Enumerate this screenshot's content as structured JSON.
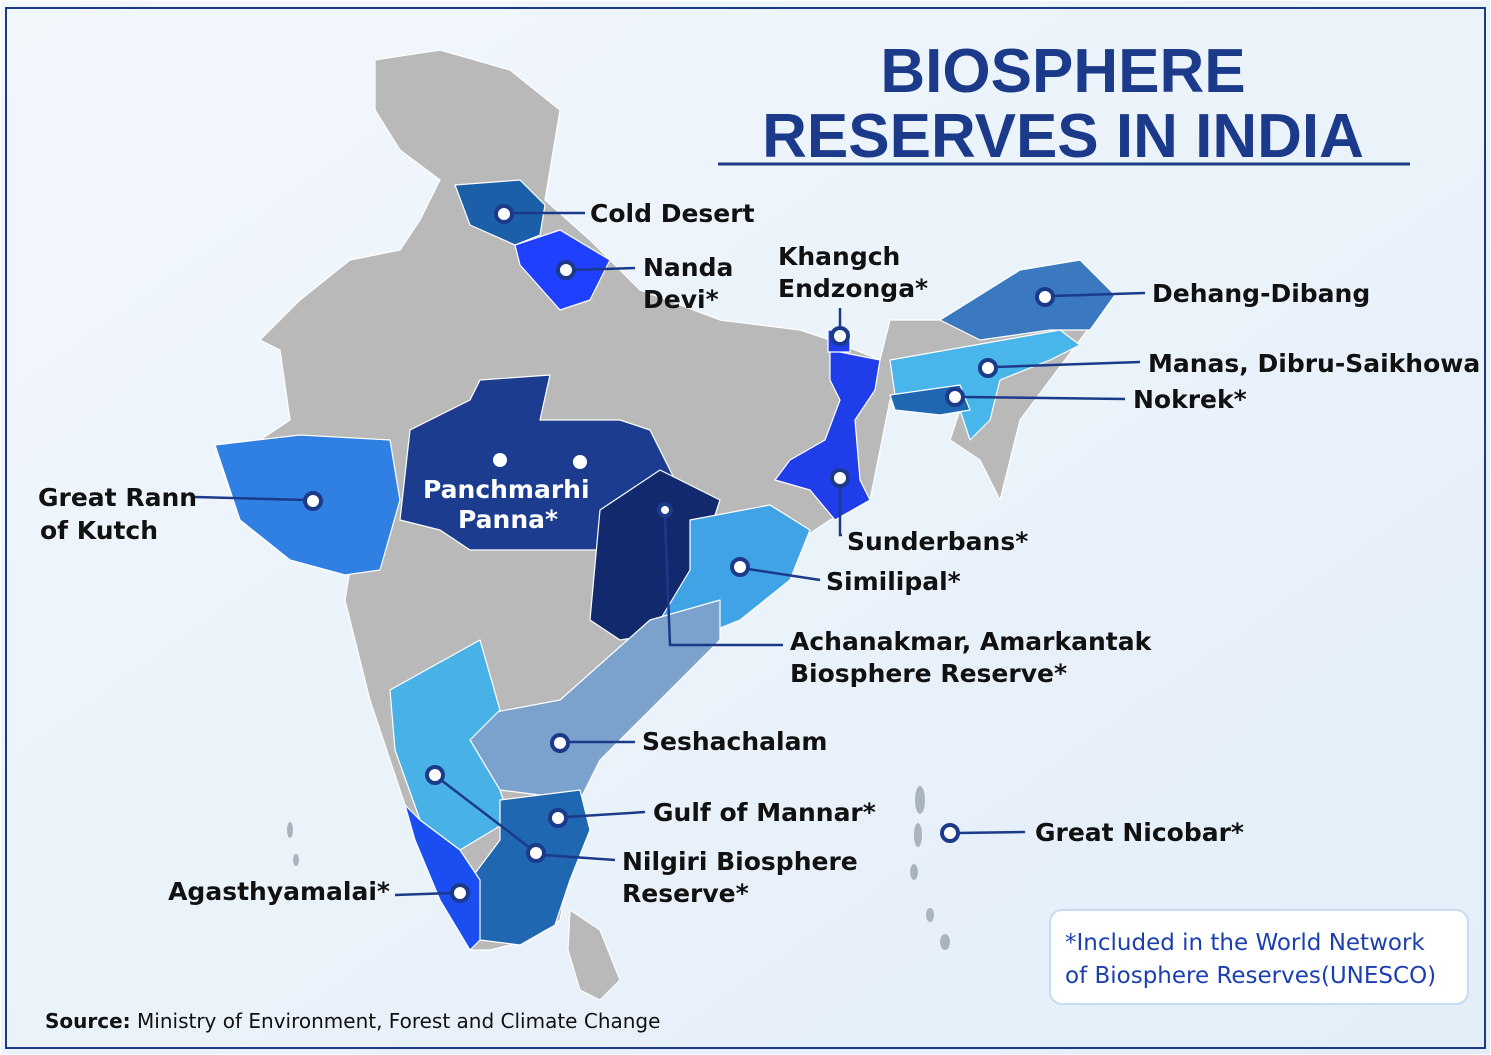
{
  "header": {
    "title_lines": [
      "BIOSPHERE",
      "RESERVES IN INDIA"
    ]
  },
  "reserves": [
    {
      "lines": [
        "Cold Desert"
      ]
    },
    {
      "lines": [
        "Nanda",
        "Devi*"
      ]
    },
    {
      "lines": [
        "Khangch",
        "Endzonga*"
      ]
    },
    {
      "lines": [
        "Dehang-Dibang"
      ]
    },
    {
      "lines": [
        "Manas, Dibru-Saikhowa"
      ]
    },
    {
      "lines": [
        "Nokrek*"
      ]
    },
    {
      "lines": [
        "Great Rann",
        "of Kutch"
      ]
    },
    {
      "lines": [
        "Panchmarhi",
        "Panna*"
      ]
    },
    {
      "lines": [
        "Sunderbans*"
      ]
    },
    {
      "lines": [
        "Similipal*"
      ]
    },
    {
      "lines": [
        "Achanakmar, Amarkantak",
        "Biosphere Reserve*"
      ]
    },
    {
      "lines": [
        "Seshachalam"
      ]
    },
    {
      "lines": [
        "Gulf of Mannar*"
      ]
    },
    {
      "lines": [
        "Nilgiri Biosphere",
        "Reserve*"
      ]
    },
    {
      "lines": [
        "Agasthyamalai*"
      ]
    },
    {
      "lines": [
        "Great Nicobar*"
      ]
    }
  ],
  "note": {
    "lines": [
      "*Included in the World Network",
      "of Biosphere Reserves(UNESCO)"
    ]
  },
  "source": {
    "label": "Source:",
    "text": "Ministry of Environment, Forest and Climate Change"
  }
}
